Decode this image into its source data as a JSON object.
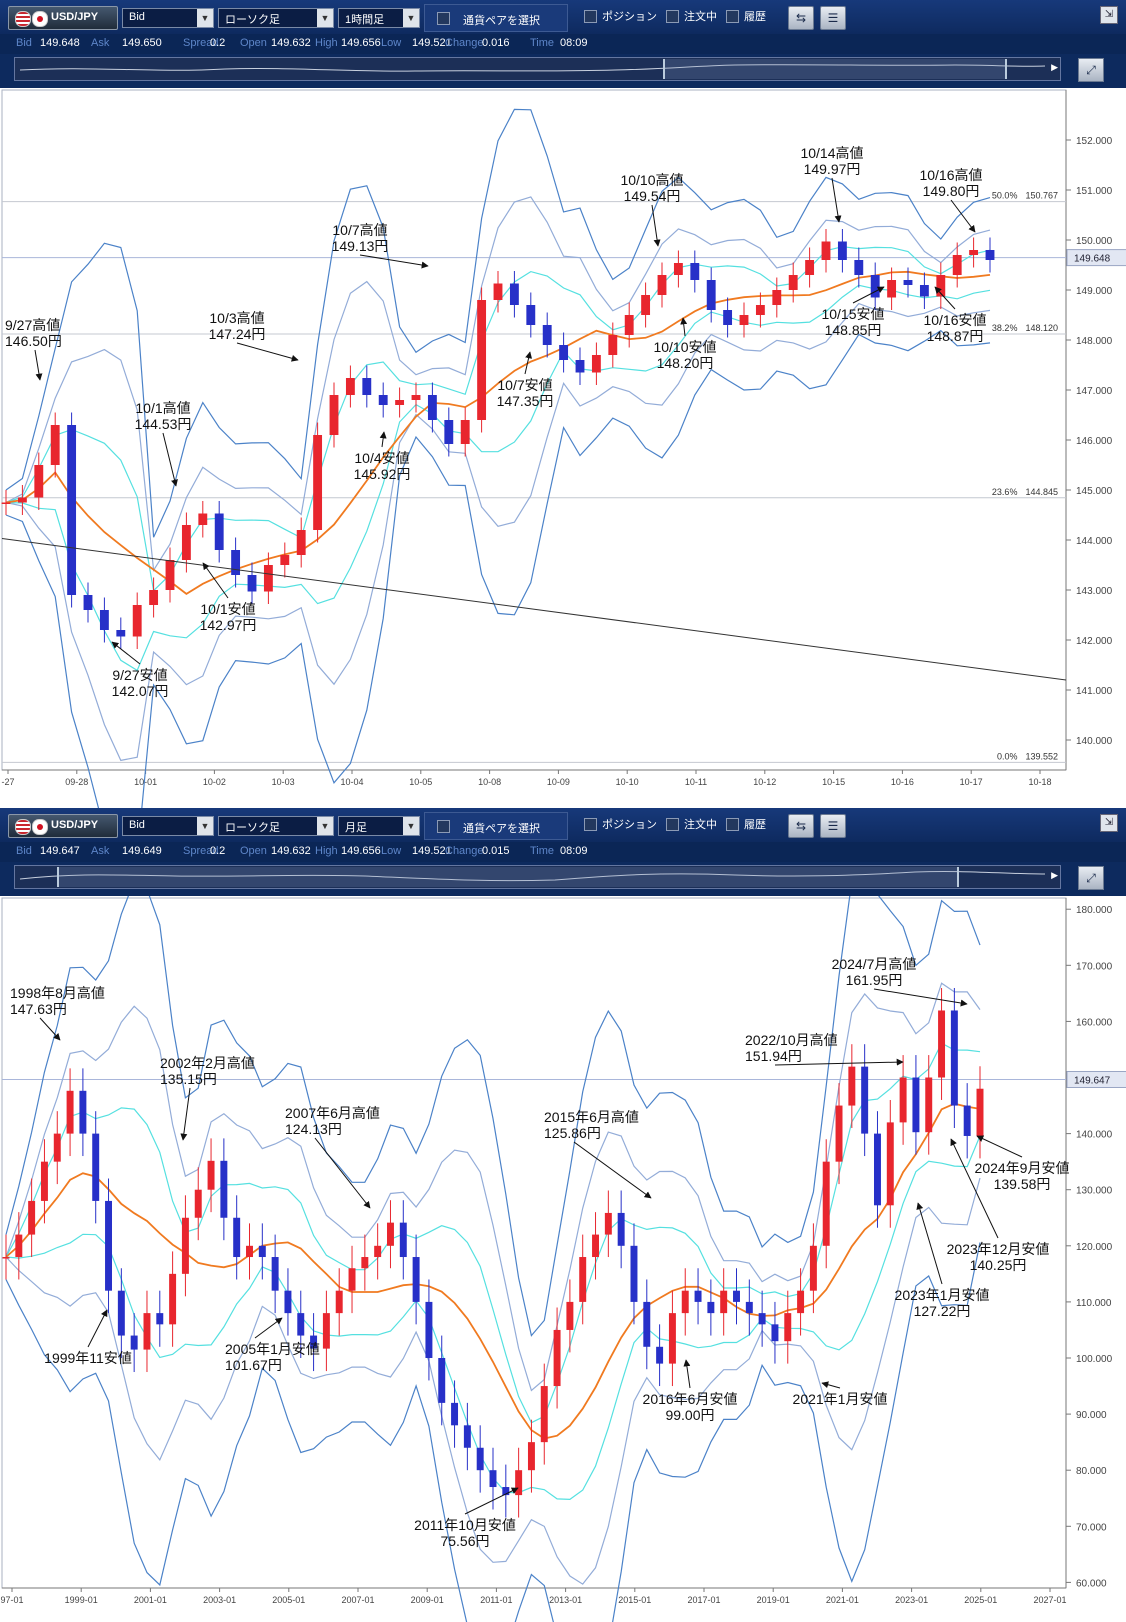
{
  "panels": [
    {
      "toolbar": {
        "pair": "USD/JPY",
        "price_type": "Bid",
        "chart_type": "ローソク足",
        "period": "1時間足",
        "select_pair_label": "通貨ペアを選択",
        "position_label": "ポジション",
        "orders_label": "注文中",
        "history_label": "履歴"
      },
      "quote": [
        {
          "k": "Bid",
          "v": "149.648"
        },
        {
          "k": "Ask",
          "v": "149.650"
        },
        {
          "k": "Spread",
          "v": "0.2"
        },
        {
          "k": "Open",
          "v": "149.632"
        },
        {
          "k": "High",
          "v": "149.656"
        },
        {
          "k": "Low",
          "v": "149.521"
        },
        {
          "k": "Change",
          "v": "0.016"
        },
        {
          "k": "Time",
          "v": "08:09"
        }
      ],
      "nav": {
        "sel_start": 0.62,
        "sel_end": 0.945
      }
    },
    {
      "toolbar": {
        "pair": "USD/JPY",
        "price_type": "Bid",
        "chart_type": "ローソク足",
        "period": "月足",
        "select_pair_label": "通貨ペアを選択",
        "position_label": "ポジション",
        "orders_label": "注文中",
        "history_label": "履歴"
      },
      "quote": [
        {
          "k": "Bid",
          "v": "149.647"
        },
        {
          "k": "Ask",
          "v": "149.649"
        },
        {
          "k": "Spread",
          "v": "0.2"
        },
        {
          "k": "Open",
          "v": "149.632"
        },
        {
          "k": "High",
          "v": "149.656"
        },
        {
          "k": "Low",
          "v": "149.521"
        },
        {
          "k": "Change",
          "v": "0.015"
        },
        {
          "k": "Time",
          "v": "08:09"
        }
      ],
      "nav": {
        "sel_start": 0.04,
        "sel_end": 0.9
      }
    }
  ],
  "chart_data": [
    {
      "type": "candlestick",
      "ylim": [
        139.4,
        153.0
      ],
      "yticks": [
        "140.000",
        "141.000",
        "142.000",
        "143.000",
        "144.000",
        "145.000",
        "146.000",
        "147.000",
        "148.000",
        "149.000",
        "150.000",
        "151.000",
        "152.000"
      ],
      "xlabels": [
        "-27",
        "09-28",
        "10-01",
        "10-02",
        "10-03",
        "10-04",
        "10-05",
        "10-08",
        "10-09",
        "10-10",
        "10-11",
        "10-12",
        "10-15",
        "10-16",
        "10-17",
        "10-18"
      ],
      "current_price": {
        "value": 149.648,
        "label": "149.648"
      },
      "fib_levels": [
        {
          "pct": "50.0%",
          "value": 150.767,
          "label": "150.767"
        },
        {
          "pct": "38.2%",
          "value": 148.12,
          "label": "148.120"
        },
        {
          "pct": "23.6%",
          "value": 144.845,
          "label": "144.845"
        },
        {
          "pct": "0.0%",
          "value": 139.552,
          "label": "139.552"
        }
      ],
      "trendline": {
        "from": [
          0,
          144.03
        ],
        "to": [
          15,
          141.2
        ]
      },
      "closes": [
        144.75,
        144.85,
        145.5,
        146.3,
        142.9,
        142.6,
        142.2,
        142.07,
        142.7,
        143.0,
        143.6,
        144.3,
        144.53,
        143.8,
        143.3,
        142.97,
        143.5,
        143.7,
        144.2,
        146.1,
        146.9,
        147.24,
        146.9,
        146.7,
        146.8,
        146.9,
        146.4,
        145.92,
        146.4,
        148.8,
        149.13,
        148.7,
        148.3,
        147.9,
        147.6,
        147.35,
        147.7,
        148.1,
        148.5,
        148.9,
        149.3,
        149.54,
        149.2,
        148.6,
        148.3,
        148.5,
        148.7,
        149.0,
        149.3,
        149.6,
        149.97,
        149.6,
        149.3,
        148.85,
        149.2,
        149.1,
        148.87,
        149.3,
        149.7,
        149.8,
        149.6
      ],
      "annotations": [
        {
          "l1": "9/27高値",
          "l2": "146.50円",
          "xi": 3.3,
          "price": 146.5,
          "tx": 5,
          "ty": 330,
          "ax": 40,
          "ay": 380,
          "anchor": "start"
        },
        {
          "l1": "9/27安値",
          "l2": "142.07円",
          "xi": 7.5,
          "price": 142.07,
          "tx": 140,
          "ty": 680,
          "ax": 112,
          "ay": 642,
          "anchor": "middle"
        },
        {
          "l1": "10/1高値",
          "l2": "144.53円",
          "xi": 12.0,
          "price": 144.53,
          "tx": 163,
          "ty": 413,
          "ax": 176,
          "ay": 486,
          "anchor": "middle"
        },
        {
          "l1": "10/1安値",
          "l2": "142.97円",
          "xi": 15.5,
          "price": 142.97,
          "tx": 228,
          "ty": 614,
          "ax": 203,
          "ay": 563,
          "anchor": "middle"
        },
        {
          "l1": "10/3高値",
          "l2": "147.24円",
          "xi": 21.5,
          "price": 147.24,
          "tx": 237,
          "ty": 323,
          "ax": 298,
          "ay": 360,
          "anchor": "middle"
        },
        {
          "l1": "10/4安値",
          "l2": "145.92円",
          "xi": 27.0,
          "price": 145.92,
          "tx": 382,
          "ty": 463,
          "ax": 384,
          "ay": 432,
          "anchor": "middle"
        },
        {
          "l1": "10/7高値",
          "l2": "149.13円",
          "xi": 30.0,
          "price": 149.13,
          "tx": 360,
          "ty": 235,
          "ax": 428,
          "ay": 266,
          "anchor": "middle"
        },
        {
          "l1": "10/7安値",
          "l2": "147.35円",
          "xi": 35.0,
          "price": 147.35,
          "tx": 525,
          "ty": 390,
          "ax": 530,
          "ay": 352,
          "anchor": "middle"
        },
        {
          "l1": "10/10高値",
          "l2": "149.54円",
          "xi": 41.0,
          "price": 149.54,
          "tx": 652,
          "ty": 185,
          "ax": 658,
          "ay": 246,
          "anchor": "middle"
        },
        {
          "l1": "10/10安値",
          "l2": "148.20円",
          "xi": 44.0,
          "price": 148.2,
          "tx": 685,
          "ty": 352,
          "ax": 683,
          "ay": 318,
          "anchor": "middle"
        },
        {
          "l1": "10/14高値",
          "l2": "149.97円",
          "xi": 50.0,
          "price": 149.97,
          "tx": 832,
          "ty": 158,
          "ax": 839,
          "ay": 222,
          "anchor": "middle"
        },
        {
          "l1": "10/15安値",
          "l2": "148.85円",
          "xi": 53.0,
          "price": 148.85,
          "tx": 853,
          "ty": 319,
          "ax": 884,
          "ay": 287,
          "anchor": "middle"
        },
        {
          "l1": "10/16高値",
          "l2": "149.80円",
          "xi": 59.0,
          "price": 149.8,
          "tx": 951,
          "ty": 180,
          "ax": 975,
          "ay": 232,
          "anchor": "middle"
        },
        {
          "l1": "10/16安値",
          "l2": "148.87円",
          "xi": 56.0,
          "price": 148.87,
          "tx": 955,
          "ty": 325,
          "ax": 935,
          "ay": 287,
          "anchor": "middle"
        }
      ]
    },
    {
      "type": "candlestick",
      "ylim": [
        59,
        182
      ],
      "yticks": [
        "60.000",
        "70.000",
        "80.000",
        "90.000",
        "100.000",
        "110.000",
        "120.000",
        "130.000",
        "140.000",
        "150.000",
        "160.000",
        "170.000",
        "180.000"
      ],
      "xlabels": [
        "97-01",
        "1999-01",
        "2001-01",
        "2003-01",
        "2005-01",
        "2007-01",
        "2009-01",
        "2011-01",
        "2013-01",
        "2015-01",
        "2017-01",
        "2019-01",
        "2021-01",
        "2023-01",
        "2025-01",
        "2027-01"
      ],
      "current_price": {
        "value": 149.647,
        "label": "149.647"
      },
      "closes": [
        118,
        122,
        128,
        135,
        140,
        147.63,
        140,
        128,
        112,
        104,
        101.5,
        108,
        106,
        115,
        125,
        130,
        135.15,
        125,
        118,
        120,
        118,
        112,
        108,
        104,
        101.67,
        108,
        112,
        116,
        118,
        120,
        124.13,
        118,
        110,
        100,
        92,
        88,
        84,
        80,
        77,
        75.56,
        80,
        85,
        95,
        105,
        110,
        118,
        122,
        125.86,
        120,
        110,
        102,
        99.0,
        108,
        112,
        110,
        108,
        112,
        110,
        108,
        106,
        103,
        108,
        112,
        120,
        135,
        145,
        151.94,
        140,
        127.22,
        142,
        150,
        140.25,
        150,
        161.95,
        145,
        139.58,
        148
      ],
      "annotations": [
        {
          "l1": "1998年8月高値",
          "l2": "147.63円",
          "price": 147.63,
          "tx": 10,
          "ty": 998,
          "ax": 60,
          "ay": 1040,
          "anchor": "start"
        },
        {
          "l1": "1999年11安値",
          "l2": "",
          "price": 101.5,
          "tx": 88,
          "ty": 1363,
          "ax": 107,
          "ay": 1310,
          "anchor": "middle"
        },
        {
          "l1": "2002年2月高値",
          "l2": "135.15円",
          "price": 135.15,
          "tx": 160,
          "ty": 1068,
          "ax": 183,
          "ay": 1140,
          "anchor": "start"
        },
        {
          "l1": "2005年1月安値",
          "l2": "101.67円",
          "price": 101.67,
          "tx": 225,
          "ty": 1354,
          "ax": 282,
          "ay": 1318,
          "anchor": "start"
        },
        {
          "l1": "2007年6月高値",
          "l2": "124.13円",
          "price": 124.13,
          "tx": 285,
          "ty": 1118,
          "ax": 370,
          "ay": 1208,
          "anchor": "start"
        },
        {
          "l1": "2011年10月安値",
          "l2": "75.56円",
          "price": 75.56,
          "tx": 465,
          "ty": 1530,
          "ax": 518,
          "ay": 1488,
          "anchor": "middle"
        },
        {
          "l1": "2015年6月高値",
          "l2": "125.86円",
          "price": 125.86,
          "tx": 544,
          "ty": 1122,
          "ax": 651,
          "ay": 1198,
          "anchor": "start"
        },
        {
          "l1": "2016年6月安値",
          "l2": "99.00円",
          "price": 99.0,
          "tx": 690,
          "ty": 1404,
          "ax": 686,
          "ay": 1360,
          "anchor": "middle"
        },
        {
          "l1": "2021年1月安値",
          "l2": "",
          "price": 103,
          "tx": 840,
          "ty": 1404,
          "ax": 822,
          "ay": 1383,
          "anchor": "middle"
        },
        {
          "l1": "2022/10月高値",
          "l2": "151.94円",
          "price": 151.94,
          "tx": 745,
          "ty": 1045,
          "ax": 903,
          "ay": 1062,
          "anchor": "start"
        },
        {
          "l1": "2023年1月安値",
          "l2": "127.22円",
          "price": 127.22,
          "tx": 942,
          "ty": 1300,
          "ax": 918,
          "ay": 1203,
          "anchor": "middle"
        },
        {
          "l1": "2023年12月安値",
          "l2": "140.25円",
          "price": 140.25,
          "tx": 998,
          "ty": 1254,
          "ax": 951,
          "ay": 1139,
          "anchor": "middle"
        },
        {
          "l1": "2024/7月高値",
          "l2": "161.95円",
          "price": 161.95,
          "tx": 874,
          "ty": 969,
          "ax": 967,
          "ay": 1004,
          "anchor": "middle"
        },
        {
          "l1": "2024年9月安値",
          "l2": "139.58円",
          "price": 139.58,
          "tx": 1022,
          "ty": 1173,
          "ax": 977,
          "ay": 1136,
          "anchor": "middle"
        }
      ]
    }
  ]
}
